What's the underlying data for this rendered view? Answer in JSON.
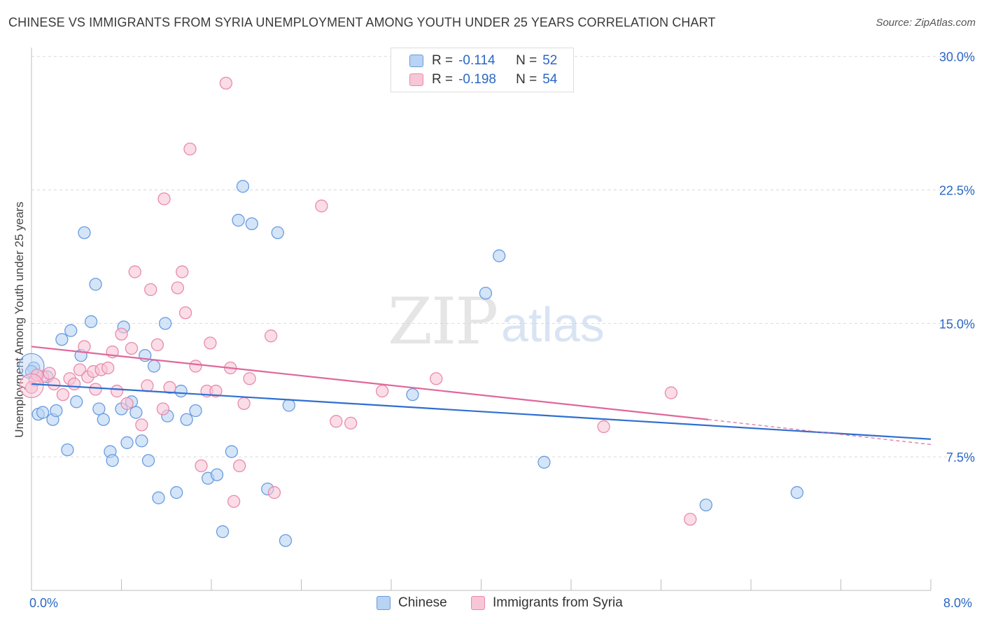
{
  "colors": {
    "blue_fill": "#b8d3f3",
    "blue_stroke": "#6a9be0",
    "blue_line": "#2e6fd0",
    "pink_fill": "#f7c6d7",
    "pink_stroke": "#ea8aaa",
    "pink_line": "#e0679a",
    "axis_text": "#2a67c4",
    "grid": "#d9d9d9"
  },
  "chart_data": {
    "type": "scatter",
    "title": "CHINESE VS IMMIGRANTS FROM SYRIA UNEMPLOYMENT AMONG YOUTH UNDER 25 YEARS CORRELATION CHART",
    "source": "Source: ZipAtlas.com",
    "xlabel": "",
    "ylabel": "Unemployment Among Youth under 25 years",
    "xlim": [
      0,
      8
    ],
    "ylim": [
      0,
      30.5
    ],
    "x_tick_labels": [
      "0.0%",
      "8.0%"
    ],
    "y_ticks": [
      7.5,
      15,
      22.5,
      30
    ],
    "y_tick_labels": [
      "7.5%",
      "15.0%",
      "22.5%",
      "30.0%"
    ],
    "watermark": {
      "bold": "ZIP",
      "light": "atlas"
    },
    "legend": {
      "rows": [
        {
          "r_label": "R =",
          "r_value": "-0.114",
          "n_label": "N =",
          "n_value": "52"
        },
        {
          "r_label": "R =",
          "r_value": "-0.198",
          "n_label": "N =",
          "n_value": "54"
        }
      ]
    },
    "series": [
      {
        "name": "Chinese",
        "color": "#6a9be0",
        "trend": {
          "x0": 0,
          "y0": 11.6,
          "x1": 8,
          "y1": 8.5
        },
        "points": [
          [
            0.02,
            12.5
          ],
          [
            0.06,
            9.9
          ],
          [
            0.1,
            10.0
          ],
          [
            0.14,
            12.0
          ],
          [
            0.19,
            9.6
          ],
          [
            0.22,
            10.1
          ],
          [
            0.27,
            14.1
          ],
          [
            0.32,
            7.9
          ],
          [
            0.35,
            14.6
          ],
          [
            0.4,
            10.6
          ],
          [
            0.44,
            13.2
          ],
          [
            0.47,
            20.1
          ],
          [
            0.53,
            15.1
          ],
          [
            0.57,
            17.2
          ],
          [
            0.6,
            10.2
          ],
          [
            0.64,
            9.6
          ],
          [
            0.7,
            7.8
          ],
          [
            0.72,
            7.3
          ],
          [
            0.8,
            10.2
          ],
          [
            0.82,
            14.8
          ],
          [
            0.85,
            8.3
          ],
          [
            0.89,
            10.6
          ],
          [
            0.93,
            10.0
          ],
          [
            0.98,
            8.4
          ],
          [
            1.01,
            13.2
          ],
          [
            1.04,
            7.3
          ],
          [
            1.09,
            12.6
          ],
          [
            1.13,
            5.2
          ],
          [
            1.19,
            15.0
          ],
          [
            1.21,
            9.8
          ],
          [
            1.29,
            5.5
          ],
          [
            1.33,
            11.2
          ],
          [
            1.38,
            9.6
          ],
          [
            1.46,
            10.1
          ],
          [
            1.57,
            6.3
          ],
          [
            1.65,
            6.5
          ],
          [
            1.7,
            3.3
          ],
          [
            1.78,
            7.8
          ],
          [
            1.84,
            20.8
          ],
          [
            1.88,
            22.7
          ],
          [
            1.96,
            20.6
          ],
          [
            2.1,
            5.7
          ],
          [
            2.19,
            20.1
          ],
          [
            2.26,
            2.8
          ],
          [
            2.29,
            10.4
          ],
          [
            3.39,
            11.0
          ],
          [
            4.04,
            16.7
          ],
          [
            4.16,
            18.8
          ],
          [
            4.56,
            7.2
          ],
          [
            6.0,
            4.8
          ],
          [
            6.81,
            5.5
          ],
          [
            0.0,
            12.3
          ]
        ]
      },
      {
        "name": "Immigrants from Syria",
        "color": "#ea8aaa",
        "trend": {
          "x0": 0,
          "y0": 13.7,
          "x1": 6.02,
          "y1": 9.6
        },
        "trend_dashed": {
          "x0": 6.02,
          "y0": 9.6,
          "x1": 8,
          "y1": 8.2
        },
        "points": [
          [
            0.03,
            11.8
          ],
          [
            0.1,
            12.0
          ],
          [
            0.16,
            12.2
          ],
          [
            0.2,
            11.6
          ],
          [
            0.28,
            11.0
          ],
          [
            0.34,
            11.9
          ],
          [
            0.38,
            11.6
          ],
          [
            0.43,
            12.4
          ],
          [
            0.47,
            13.7
          ],
          [
            0.5,
            12.0
          ],
          [
            0.55,
            12.3
          ],
          [
            0.57,
            11.3
          ],
          [
            0.62,
            12.4
          ],
          [
            0.68,
            12.5
          ],
          [
            0.72,
            13.4
          ],
          [
            0.76,
            11.2
          ],
          [
            0.8,
            14.4
          ],
          [
            0.85,
            10.5
          ],
          [
            0.89,
            13.6
          ],
          [
            0.92,
            17.9
          ],
          [
            0.98,
            9.3
          ],
          [
            1.03,
            11.5
          ],
          [
            1.06,
            16.9
          ],
          [
            1.12,
            13.8
          ],
          [
            1.17,
            10.2
          ],
          [
            1.18,
            22.0
          ],
          [
            1.23,
            11.4
          ],
          [
            1.3,
            17.0
          ],
          [
            1.34,
            17.9
          ],
          [
            1.37,
            15.6
          ],
          [
            1.41,
            24.8
          ],
          [
            1.46,
            12.6
          ],
          [
            1.51,
            7.0
          ],
          [
            1.56,
            11.2
          ],
          [
            1.59,
            13.9
          ],
          [
            1.64,
            11.2
          ],
          [
            1.73,
            28.5
          ],
          [
            1.77,
            12.5
          ],
          [
            1.8,
            5.0
          ],
          [
            1.85,
            7.0
          ],
          [
            1.89,
            10.5
          ],
          [
            1.94,
            11.9
          ],
          [
            2.13,
            14.3
          ],
          [
            2.16,
            5.5
          ],
          [
            2.58,
            21.6
          ],
          [
            2.71,
            9.5
          ],
          [
            2.84,
            9.4
          ],
          [
            3.12,
            11.2
          ],
          [
            3.6,
            11.9
          ],
          [
            5.09,
            9.2
          ],
          [
            5.69,
            11.1
          ],
          [
            5.86,
            4.0
          ],
          [
            0.0,
            11.4
          ],
          [
            0.05,
            12.1
          ]
        ]
      }
    ]
  }
}
